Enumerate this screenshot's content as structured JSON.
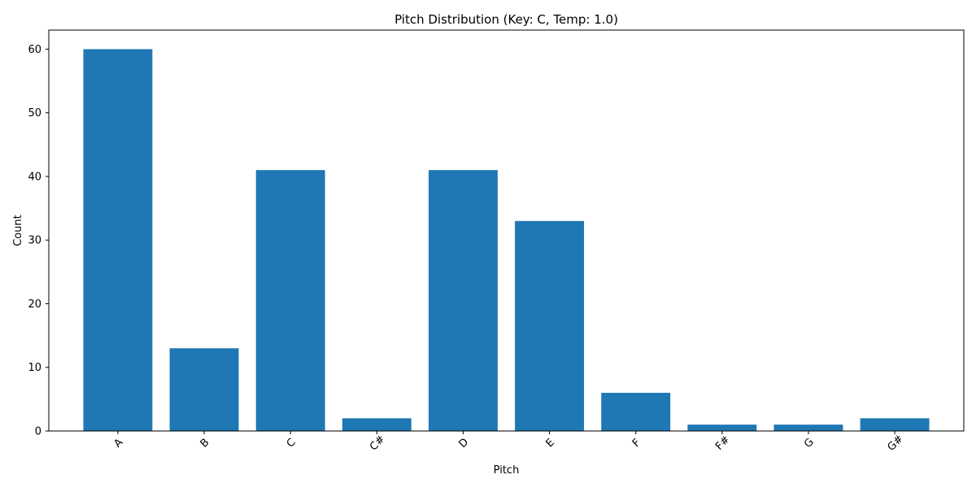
{
  "chart_data": {
    "type": "bar",
    "title": "Pitch Distribution (Key: C, Temp: 1.0)",
    "xlabel": "Pitch",
    "ylabel": "Count",
    "categories": [
      "A",
      "B",
      "C",
      "C#",
      "D",
      "E",
      "F",
      "F#",
      "G",
      "G#"
    ],
    "values": [
      60,
      13,
      41,
      2,
      41,
      33,
      6,
      1,
      1,
      2
    ],
    "ylim": [
      0,
      63
    ],
    "yticks": [
      0,
      10,
      20,
      30,
      40,
      50,
      60
    ],
    "x_tick_rotation_deg": 45,
    "grid": false,
    "legend": "none",
    "bar_color": "#1f77b4"
  }
}
